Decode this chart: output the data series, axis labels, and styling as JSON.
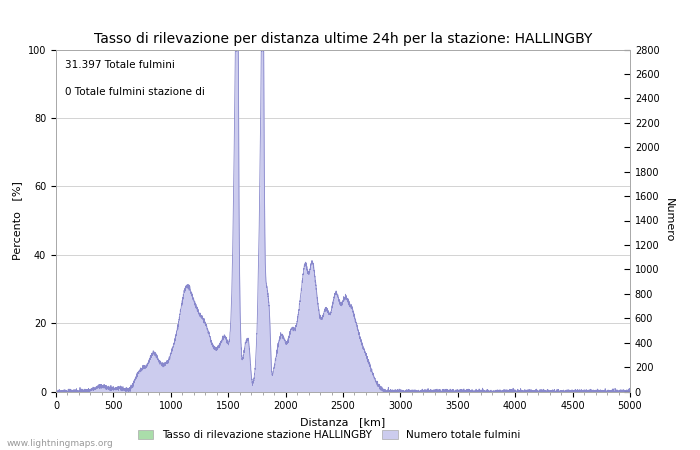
{
  "title": "Tasso di rilevazione per distanza ultime 24h per la stazione: HALLINGBY",
  "xlabel": "Distanza   [km]",
  "ylabel_left": "Percento   [%]",
  "ylabel_right": "Numero",
  "annotation_line1": "31.397 Totale fulmini",
  "annotation_line2": "0 Totale fulmini stazione di",
  "xlim": [
    0,
    5000
  ],
  "ylim_left": [
    0,
    100
  ],
  "ylim_right": [
    0,
    2800
  ],
  "xticks": [
    0,
    500,
    1000,
    1500,
    2000,
    2500,
    3000,
    3500,
    4000,
    4500,
    5000
  ],
  "yticks_left": [
    0,
    20,
    40,
    60,
    80,
    100
  ],
  "yticks_right": [
    0,
    200,
    400,
    600,
    800,
    1000,
    1200,
    1400,
    1600,
    1800,
    2000,
    2200,
    2400,
    2600,
    2800
  ],
  "line_color": "#8888cc",
  "fill_color": "#ccccee",
  "green_fill": "#aaddaa",
  "background_color": "#ffffff",
  "grid_color": "#cccccc",
  "watermark": "www.lightningmaps.org",
  "legend_label1": "Tasso di rilevazione stazione HALLINGBY",
  "legend_label2": "Numero totale fulmini",
  "title_fontsize": 10,
  "axis_fontsize": 8,
  "tick_fontsize": 7
}
